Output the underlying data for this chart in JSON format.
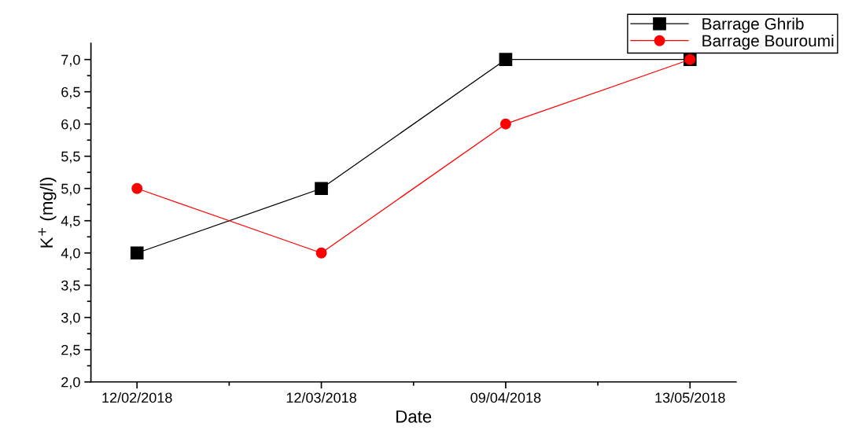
{
  "chart_data": {
    "type": "line",
    "xlabel": "Date",
    "ylabel": "K$^{+}$ (mg/l)",
    "categories": [
      "12/02/2018",
      "12/03/2018",
      "09/04/2018",
      "13/05/2018"
    ],
    "series": [
      {
        "name": "Barrage Ghrib",
        "color": "#000000",
        "marker": "square",
        "values": [
          4.0,
          5.0,
          7.0,
          7.0
        ]
      },
      {
        "name": "Barrage Bouroumi",
        "color": "#ff0000",
        "marker": "circle",
        "values": [
          5.0,
          4.0,
          6.0,
          7.0
        ]
      }
    ],
    "ylim": [
      2.0,
      7.25
    ],
    "yticks": [
      {
        "value": 2.0,
        "label": "2,0"
      },
      {
        "value": 2.5,
        "label": "2,5"
      },
      {
        "value": 3.0,
        "label": "3,0"
      },
      {
        "value": 3.5,
        "label": "3,5"
      },
      {
        "value": 4.0,
        "label": "4,0"
      },
      {
        "value": 4.5,
        "label": "4,5"
      },
      {
        "value": 5.0,
        "label": "5,0"
      },
      {
        "value": 5.5,
        "label": "5,5"
      },
      {
        "value": 6.0,
        "label": "6,0"
      },
      {
        "value": 6.5,
        "label": "6,5"
      },
      {
        "value": 7.0,
        "label": "7,0"
      }
    ],
    "grid": false,
    "legend": "top right",
    "line_style": "solid"
  }
}
